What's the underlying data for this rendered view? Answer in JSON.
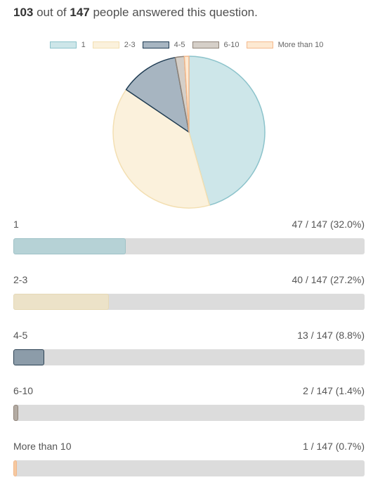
{
  "summary": {
    "answered": "103",
    "middle": " out of ",
    "total": "147",
    "tail": " people answered this question."
  },
  "chart_data": {
    "type": "pie",
    "total_respondents": 147,
    "answered": 103,
    "categories": [
      "1",
      "2-3",
      "4-5",
      "6-10",
      "More than 10"
    ],
    "counts": [
      47,
      40,
      13,
      2,
      1
    ],
    "percent_labels": [
      "47 / 147 (32.0%)",
      "40 / 147 (27.2%)",
      "13 / 147 (8.8%)",
      "2 / 147 (1.4%)",
      "1 / 147 (0.7%)"
    ],
    "legend": [
      "1",
      "2-3",
      "4-5",
      "6-10",
      "More than 10"
    ],
    "legend_position": "top",
    "colors": {
      "fill": [
        "#cde6e9",
        "#fbf1dc",
        "#a7b5c1",
        "#d5cfc8",
        "#fde9d2"
      ],
      "stroke": [
        "#8cc3cb",
        "#f3dfb2",
        "#1e3b52",
        "#8f8378",
        "#f4b98c"
      ],
      "bar_fill": [
        "#b6d2d6",
        "#ece2c8",
        "#8c9ca9",
        "#b3aba3",
        "#f6c9a0"
      ],
      "bar_stroke": [
        "#9fc2c7",
        "#e6d9b6",
        "#2c4254",
        "#8f8378",
        "#f1b78b"
      ]
    }
  }
}
